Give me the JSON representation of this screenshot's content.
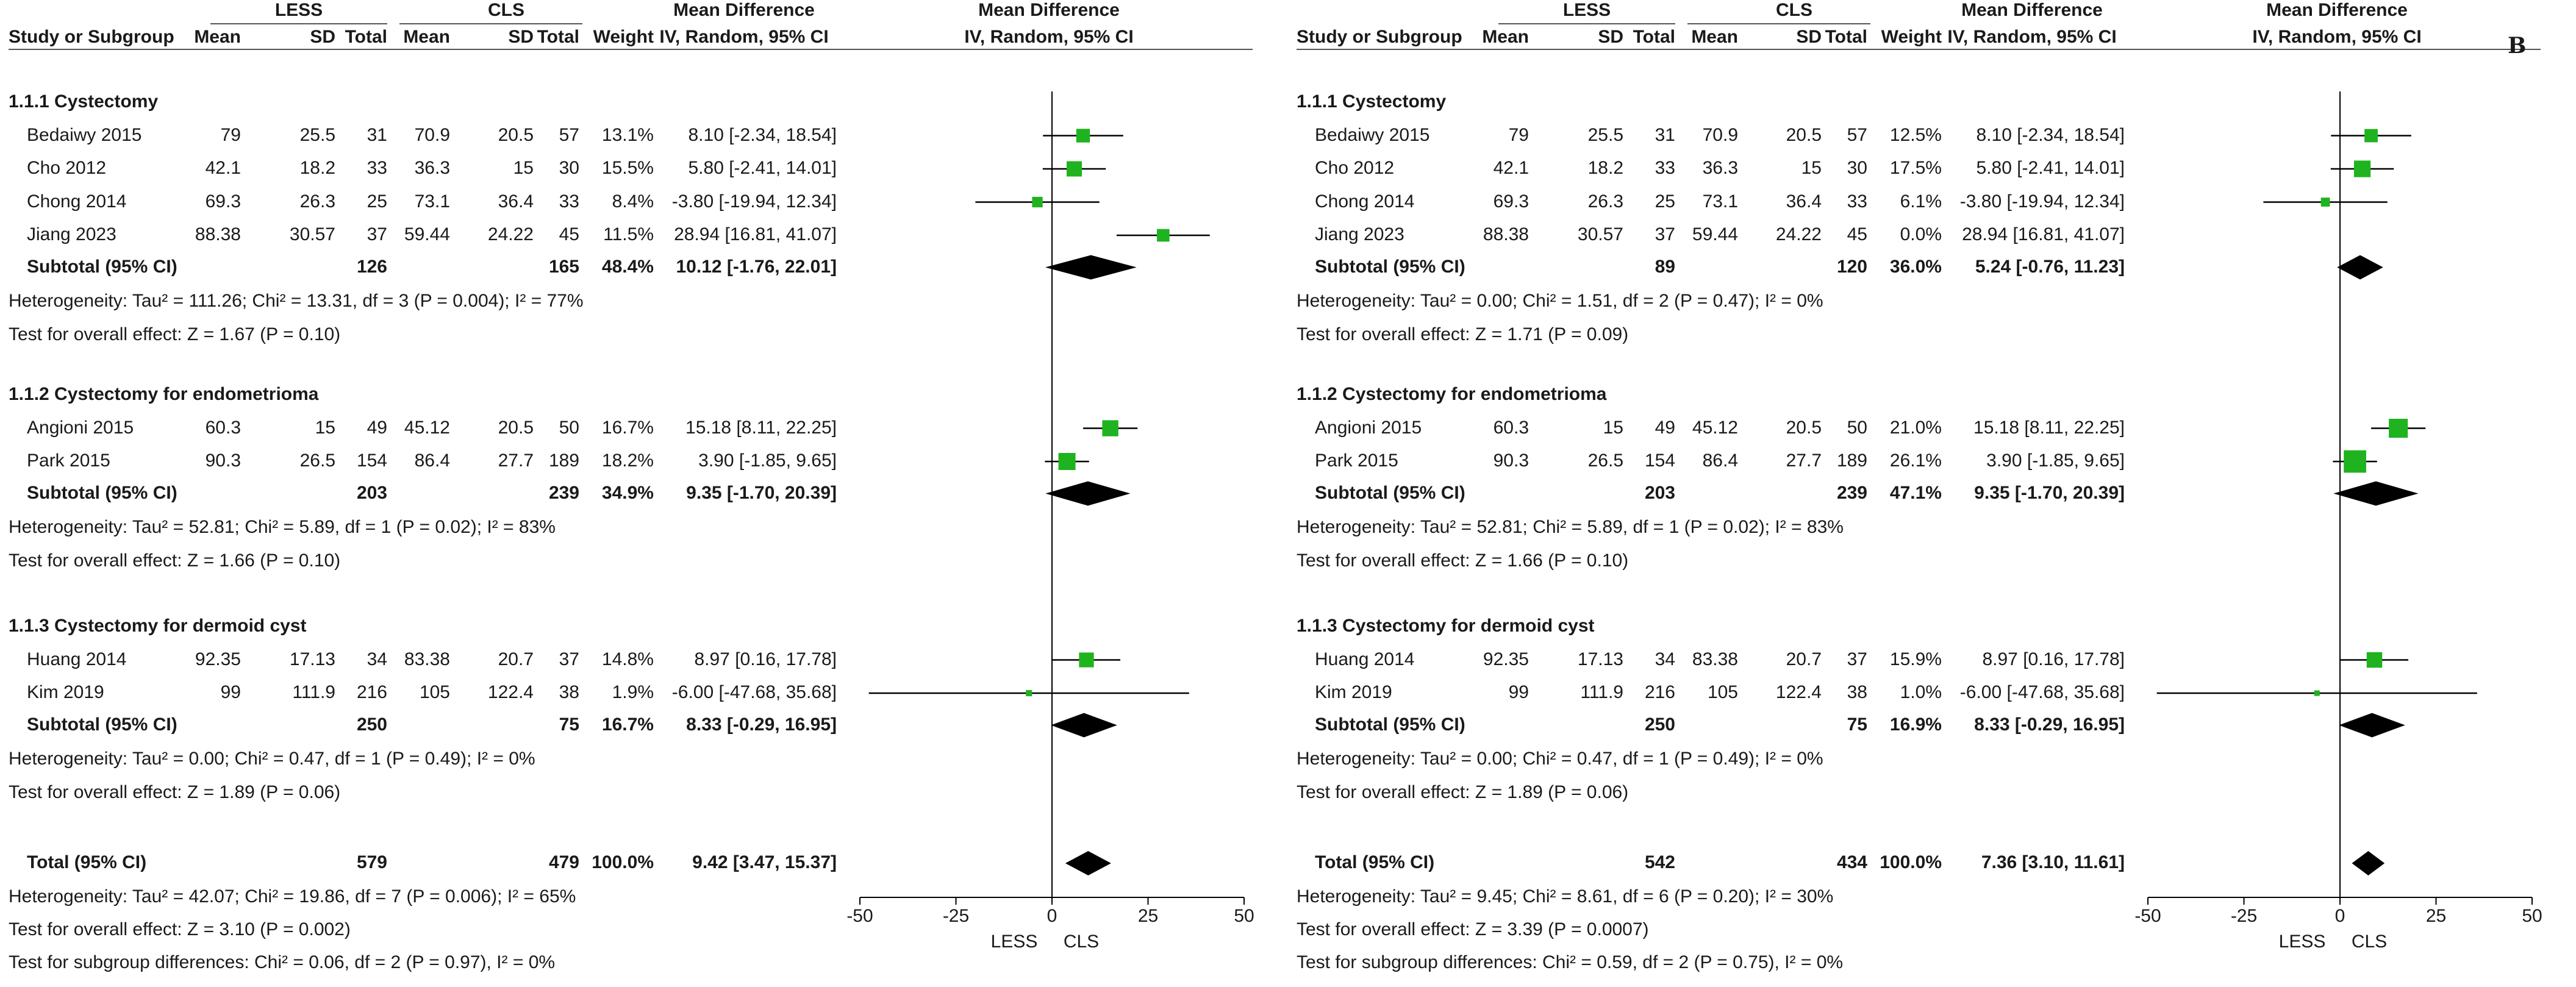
{
  "header": {
    "study_col": "Study or Subgroup",
    "exp_group": "LESS",
    "ctrl_group": "CLS",
    "mean": "Mean",
    "sd": "SD",
    "total": "Total",
    "weight": "Weight",
    "effect_title": "Mean Difference",
    "effect_method": "IV, Random, 95% CI",
    "plot_title": "Mean Difference",
    "plot_method": "IV, Random, 95% CI"
  },
  "axis": {
    "ticks": [
      -50,
      -25,
      0,
      25,
      50
    ],
    "tick_labels": [
      "-50",
      "-25",
      "0",
      "25",
      "50"
    ],
    "favours_left": "LESS",
    "favours_right": "CLS"
  },
  "colors": {
    "marker": "#1fb31f",
    "diamond": "#000000",
    "line": "#000000"
  },
  "chart_data": [
    {
      "type": "forest",
      "panel_label": "",
      "xlim": [
        -50,
        50
      ],
      "subgroups": [
        {
          "title": "1.1.1 Cystectomy",
          "studies": [
            {
              "name": "Bedaiwy 2015",
              "m1": "79",
              "sd1": "25.5",
              "n1": "31",
              "m2": "70.9",
              "sd2": "20.5",
              "n2": "57",
              "weight": "13.1%",
              "ci": "8.10 [-2.34, 18.54]",
              "est": 8.1,
              "lo": -2.34,
              "hi": 18.54
            },
            {
              "name": "Cho 2012",
              "m1": "42.1",
              "sd1": "18.2",
              "n1": "33",
              "m2": "36.3",
              "sd2": "15",
              "n2": "30",
              "weight": "15.5%",
              "ci": "5.80 [-2.41, 14.01]",
              "est": 5.8,
              "lo": -2.41,
              "hi": 14.01
            },
            {
              "name": "Chong 2014",
              "m1": "69.3",
              "sd1": "26.3",
              "n1": "25",
              "m2": "73.1",
              "sd2": "36.4",
              "n2": "33",
              "weight": "8.4%",
              "ci": "-3.80 [-19.94, 12.34]",
              "est": -3.8,
              "lo": -19.94,
              "hi": 12.34
            },
            {
              "name": "Jiang 2023",
              "m1": "88.38",
              "sd1": "30.57",
              "n1": "37",
              "m2": "59.44",
              "sd2": "24.22",
              "n2": "45",
              "weight": "11.5%",
              "ci": "28.94 [16.81, 41.07]",
              "est": 28.94,
              "lo": 16.81,
              "hi": 41.07
            }
          ],
          "subtotal": {
            "label": "Subtotal (95% CI)",
            "n1": "126",
            "n2": "165",
            "weight": "48.4%",
            "ci": "10.12 [-1.76, 22.01]",
            "est": 10.12,
            "lo": -1.76,
            "hi": 22.01
          },
          "heterogeneity": "Heterogeneity: Tau² = 111.26; Chi² = 13.31, df = 3 (P = 0.004); I² = 77%",
          "overall": "Test for overall effect: Z = 1.67 (P = 0.10)"
        },
        {
          "title": "1.1.2 Cystectomy for endometrioma",
          "studies": [
            {
              "name": "Angioni 2015",
              "m1": "60.3",
              "sd1": "15",
              "n1": "49",
              "m2": "45.12",
              "sd2": "20.5",
              "n2": "50",
              "weight": "16.7%",
              "ci": "15.18 [8.11, 22.25]",
              "est": 15.18,
              "lo": 8.11,
              "hi": 22.25
            },
            {
              "name": "Park 2015",
              "m1": "90.3",
              "sd1": "26.5",
              "n1": "154",
              "m2": "86.4",
              "sd2": "27.7",
              "n2": "189",
              "weight": "18.2%",
              "ci": "3.90 [-1.85, 9.65]",
              "est": 3.9,
              "lo": -1.85,
              "hi": 9.65
            }
          ],
          "subtotal": {
            "label": "Subtotal (95% CI)",
            "n1": "203",
            "n2": "239",
            "weight": "34.9%",
            "ci": "9.35 [-1.70, 20.39]",
            "est": 9.35,
            "lo": -1.7,
            "hi": 20.39
          },
          "heterogeneity": "Heterogeneity: Tau² = 52.81; Chi² = 5.89, df = 1 (P = 0.02); I² = 83%",
          "overall": "Test for overall effect: Z = 1.66 (P = 0.10)"
        },
        {
          "title": "1.1.3 Cystectomy for dermoid cyst",
          "studies": [
            {
              "name": "Huang 2014",
              "m1": "92.35",
              "sd1": "17.13",
              "n1": "34",
              "m2": "83.38",
              "sd2": "20.7",
              "n2": "37",
              "weight": "14.8%",
              "ci": "8.97 [0.16, 17.78]",
              "est": 8.97,
              "lo": 0.16,
              "hi": 17.78
            },
            {
              "name": "Kim 2019",
              "m1": "99",
              "sd1": "111.9",
              "n1": "216",
              "m2": "105",
              "sd2": "122.4",
              "n2": "38",
              "weight": "1.9%",
              "ci": "-6.00 [-47.68, 35.68]",
              "est": -6.0,
              "lo": -47.68,
              "hi": 35.68
            }
          ],
          "subtotal": {
            "label": "Subtotal (95% CI)",
            "n1": "250",
            "n2": "75",
            "weight": "16.7%",
            "ci": "8.33 [-0.29, 16.95]",
            "est": 8.33,
            "lo": -0.29,
            "hi": 16.95
          },
          "heterogeneity": "Heterogeneity: Tau² = 0.00; Chi² = 0.47, df = 1 (P = 0.49); I² = 0%",
          "overall": "Test for overall effect: Z = 1.89 (P = 0.06)"
        }
      ],
      "total": {
        "label": "Total (95% CI)",
        "n1": "579",
        "n2": "479",
        "weight": "100.0%",
        "ci": "9.42 [3.47, 15.37]",
        "est": 9.42,
        "lo": 3.47,
        "hi": 15.37
      },
      "footer": [
        "Heterogeneity: Tau² = 42.07; Chi² = 19.86, df = 7 (P = 0.006); I² = 65%",
        "Test for overall effect: Z = 3.10 (P = 0.002)",
        "Test for subgroup differences: Chi² = 0.06, df = 2 (P = 0.97), I² = 0%"
      ]
    },
    {
      "type": "forest",
      "panel_label": "B",
      "xlim": [
        -50,
        50
      ],
      "subgroups": [
        {
          "title": "1.1.1 Cystectomy",
          "studies": [
            {
              "name": "Bedaiwy 2015",
              "m1": "79",
              "sd1": "25.5",
              "n1": "31",
              "m2": "70.9",
              "sd2": "20.5",
              "n2": "57",
              "weight": "12.5%",
              "ci": "8.10 [-2.34, 18.54]",
              "est": 8.1,
              "lo": -2.34,
              "hi": 18.54
            },
            {
              "name": "Cho 2012",
              "m1": "42.1",
              "sd1": "18.2",
              "n1": "33",
              "m2": "36.3",
              "sd2": "15",
              "n2": "30",
              "weight": "17.5%",
              "ci": "5.80 [-2.41, 14.01]",
              "est": 5.8,
              "lo": -2.41,
              "hi": 14.01
            },
            {
              "name": "Chong 2014",
              "m1": "69.3",
              "sd1": "26.3",
              "n1": "25",
              "m2": "73.1",
              "sd2": "36.4",
              "n2": "33",
              "weight": "6.1%",
              "ci": "-3.80 [-19.94, 12.34]",
              "est": -3.8,
              "lo": -19.94,
              "hi": 12.34
            },
            {
              "name": "Jiang 2023",
              "m1": "88.38",
              "sd1": "30.57",
              "n1": "37",
              "m2": "59.44",
              "sd2": "24.22",
              "n2": "45",
              "weight": "0.0%",
              "ci": "28.94 [16.81, 41.07]",
              "est": null,
              "lo": null,
              "hi": null
            }
          ],
          "subtotal": {
            "label": "Subtotal (95% CI)",
            "n1": "89",
            "n2": "120",
            "weight": "36.0%",
            "ci": "5.24 [-0.76, 11.23]",
            "est": 5.24,
            "lo": -0.76,
            "hi": 11.23
          },
          "heterogeneity": "Heterogeneity: Tau² = 0.00; Chi² = 1.51, df = 2 (P = 0.47); I² = 0%",
          "overall": "Test for overall effect: Z = 1.71 (P = 0.09)"
        },
        {
          "title": "1.1.2 Cystectomy for endometrioma",
          "studies": [
            {
              "name": "Angioni 2015",
              "m1": "60.3",
              "sd1": "15",
              "n1": "49",
              "m2": "45.12",
              "sd2": "20.5",
              "n2": "50",
              "weight": "21.0%",
              "ci": "15.18 [8.11, 22.25]",
              "est": 15.18,
              "lo": 8.11,
              "hi": 22.25
            },
            {
              "name": "Park 2015",
              "m1": "90.3",
              "sd1": "26.5",
              "n1": "154",
              "m2": "86.4",
              "sd2": "27.7",
              "n2": "189",
              "weight": "26.1%",
              "ci": "3.90 [-1.85, 9.65]",
              "est": 3.9,
              "lo": -1.85,
              "hi": 9.65
            }
          ],
          "subtotal": {
            "label": "Subtotal (95% CI)",
            "n1": "203",
            "n2": "239",
            "weight": "47.1%",
            "ci": "9.35 [-1.70, 20.39]",
            "est": 9.35,
            "lo": -1.7,
            "hi": 20.39
          },
          "heterogeneity": "Heterogeneity: Tau² = 52.81; Chi² = 5.89, df = 1 (P = 0.02); I² = 83%",
          "overall": "Test for overall effect: Z = 1.66 (P = 0.10)"
        },
        {
          "title": "1.1.3 Cystectomy for dermoid cyst",
          "studies": [
            {
              "name": "Huang 2014",
              "m1": "92.35",
              "sd1": "17.13",
              "n1": "34",
              "m2": "83.38",
              "sd2": "20.7",
              "n2": "37",
              "weight": "15.9%",
              "ci": "8.97 [0.16, 17.78]",
              "est": 8.97,
              "lo": 0.16,
              "hi": 17.78
            },
            {
              "name": "Kim 2019",
              "m1": "99",
              "sd1": "111.9",
              "n1": "216",
              "m2": "105",
              "sd2": "122.4",
              "n2": "38",
              "weight": "1.0%",
              "ci": "-6.00 [-47.68, 35.68]",
              "est": -6.0,
              "lo": -47.68,
              "hi": 35.68
            }
          ],
          "subtotal": {
            "label": "Subtotal (95% CI)",
            "n1": "250",
            "n2": "75",
            "weight": "16.9%",
            "ci": "8.33 [-0.29, 16.95]",
            "est": 8.33,
            "lo": -0.29,
            "hi": 16.95
          },
          "heterogeneity": "Heterogeneity: Tau² = 0.00; Chi² = 0.47, df = 1 (P = 0.49); I² = 0%",
          "overall": "Test for overall effect: Z = 1.89 (P = 0.06)"
        }
      ],
      "total": {
        "label": "Total (95% CI)",
        "n1": "542",
        "n2": "434",
        "weight": "100.0%",
        "ci": "7.36 [3.10, 11.61]",
        "est": 7.36,
        "lo": 3.1,
        "hi": 11.61
      },
      "footer": [
        "Heterogeneity: Tau² = 9.45; Chi² = 8.61, df = 6 (P = 0.20); I² = 30%",
        "Test for overall effect: Z = 3.39 (P = 0.0007)",
        "Test for subgroup differences: Chi² = 0.59, df = 2 (P = 0.75), I² = 0%"
      ]
    }
  ]
}
